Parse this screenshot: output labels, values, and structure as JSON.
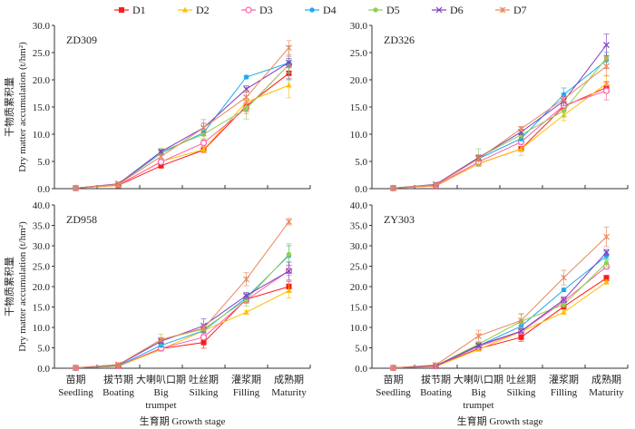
{
  "chart_data": {
    "type": "line",
    "legend": {
      "placement": "top",
      "entries": [
        "D1",
        "D2",
        "D3",
        "D4",
        "D5",
        "D6",
        "D7"
      ]
    },
    "series_styles": [
      {
        "name": "D1",
        "color": "#ff1a1a",
        "marker": "square"
      },
      {
        "name": "D2",
        "color": "#ffc000",
        "marker": "triangle"
      },
      {
        "name": "D3",
        "color": "#ff5fa8",
        "marker": "diamond-open"
      },
      {
        "name": "D4",
        "color": "#1fa8f0",
        "marker": "circle"
      },
      {
        "name": "D5",
        "color": "#8fd14f",
        "marker": "circle"
      },
      {
        "name": "D6",
        "color": "#7d3fbf",
        "marker": "x"
      },
      {
        "name": "D7",
        "color": "#e8865a",
        "marker": "asterisk"
      }
    ],
    "categories_cn": [
      "苗期",
      "拔节期",
      "大喇叭口期",
      "吐丝期",
      "灌浆期",
      "成熟期"
    ],
    "categories_en": [
      "Seedling",
      "Boating",
      "Big trumpet",
      "Silking",
      "Filling",
      "Maturity"
    ],
    "xlabel": "生育期 Growth stage",
    "ylabel_cn": "干物质累积量",
    "ylabel_en": "Dry matter accumulation (t/hm²)",
    "panels": [
      {
        "title": "ZD309",
        "ylim": [
          0,
          30
        ],
        "yticks": [
          "0.0",
          "5.0",
          "10.0",
          "15.0",
          "20.0",
          "25.0",
          "30.0"
        ],
        "series": [
          {
            "name": "D1",
            "values": [
              0.1,
              0.6,
              4.2,
              7.1,
              15.2,
              21.2
            ],
            "errors": [
              0.1,
              0.1,
              0.3,
              0.4,
              1.0,
              1.0
            ]
          },
          {
            "name": "D2",
            "values": [
              0.1,
              0.6,
              5.0,
              7.2,
              15.9,
              19.0
            ],
            "errors": [
              0.1,
              0.1,
              0.4,
              0.5,
              1.2,
              2.3
            ]
          },
          {
            "name": "D3",
            "values": [
              0.1,
              0.7,
              4.9,
              8.4,
              14.8,
              22.8
            ],
            "errors": [
              0.1,
              0.1,
              0.3,
              0.6,
              1.0,
              1.5
            ]
          },
          {
            "name": "D4",
            "values": [
              0.1,
              0.8,
              6.5,
              10.3,
              20.5,
              23.1
            ],
            "errors": [
              0.1,
              0.1,
              0.4,
              0.6,
              0.3,
              3.1
            ]
          },
          {
            "name": "D5",
            "values": [
              0.1,
              0.8,
              6.8,
              10.0,
              14.7,
              22.8
            ],
            "errors": [
              0.1,
              0.1,
              0.6,
              0.8,
              1.9,
              1.5
            ]
          },
          {
            "name": "D6",
            "values": [
              0.1,
              0.9,
              6.8,
              11.2,
              18.3,
              23.2
            ],
            "errors": [
              0.1,
              0.1,
              0.4,
              0.8,
              0.6,
              0.7
            ]
          },
          {
            "name": "D7",
            "values": [
              0.1,
              0.8,
              5.9,
              11.2,
              16.8,
              25.9
            ],
            "errors": [
              0.1,
              0.1,
              0.5,
              1.5,
              1.2,
              1.3
            ]
          }
        ]
      },
      {
        "title": "ZD326",
        "ylim": [
          0,
          30
        ],
        "yticks": [
          "0.0",
          "5.0",
          "10.0",
          "15.0",
          "20.0",
          "25.0",
          "30.0"
        ],
        "series": [
          {
            "name": "D1",
            "values": [
              0.1,
              0.5,
              4.6,
              7.3,
              15.1,
              18.6
            ],
            "errors": [
              0.1,
              0.1,
              0.3,
              0.4,
              0.8,
              1.0
            ]
          },
          {
            "name": "D2",
            "values": [
              0.1,
              0.5,
              4.6,
              7.3,
              13.5,
              19.3
            ],
            "errors": [
              0.1,
              0.1,
              0.3,
              1.2,
              1.0,
              1.5
            ]
          },
          {
            "name": "D3",
            "values": [
              0.1,
              0.6,
              4.9,
              8.6,
              15.3,
              18.0
            ],
            "errors": [
              0.1,
              0.1,
              0.3,
              0.5,
              0.8,
              1.7
            ]
          },
          {
            "name": "D4",
            "values": [
              0.1,
              0.7,
              5.5,
              9.2,
              17.3,
              23.6
            ],
            "errors": [
              0.1,
              0.1,
              0.4,
              0.5,
              1.2,
              1.5
            ]
          },
          {
            "name": "D5",
            "values": [
              0.1,
              0.7,
              5.7,
              9.9,
              14.3,
              24.0
            ],
            "errors": [
              0.1,
              0.1,
              1.6,
              0.6,
              1.0,
              0.6
            ]
          },
          {
            "name": "D6",
            "values": [
              0.1,
              0.8,
              5.7,
              10.4,
              16.1,
              26.4
            ],
            "errors": [
              0.1,
              0.1,
              0.5,
              0.5,
              0.8,
              2.0
            ]
          },
          {
            "name": "D7",
            "values": [
              0.1,
              0.7,
              5.5,
              11.0,
              16.5,
              22.5
            ],
            "errors": [
              0.1,
              0.1,
              0.5,
              0.4,
              0.6,
              1.8
            ]
          }
        ]
      },
      {
        "title": "ZD958",
        "ylim": [
          0,
          40
        ],
        "yticks": [
          "0.0",
          "5.0",
          "10.0",
          "15.0",
          "20.0",
          "25.0",
          "30.0",
          "35.0",
          "40.0"
        ],
        "series": [
          {
            "name": "D1",
            "values": [
              0.1,
              0.5,
              4.8,
              6.3,
              16.9,
              20.0
            ],
            "errors": [
              0.1,
              0.1,
              0.3,
              1.4,
              0.8,
              1.3
            ]
          },
          {
            "name": "D2",
            "values": [
              0.1,
              0.5,
              4.6,
              9.2,
              13.7,
              19.0
            ],
            "errors": [
              0.1,
              0.1,
              0.3,
              0.5,
              0.4,
              1.8
            ]
          },
          {
            "name": "D3",
            "values": [
              0.1,
              0.6,
              4.9,
              7.6,
              16.7,
              23.9
            ],
            "errors": [
              0.1,
              0.1,
              0.3,
              0.6,
              0.8,
              1.2
            ]
          },
          {
            "name": "D4",
            "values": [
              0.1,
              0.6,
              5.6,
              9.2,
              17.3,
              27.6
            ],
            "errors": [
              0.1,
              0.1,
              0.4,
              0.6,
              0.8,
              2.4
            ]
          },
          {
            "name": "D5",
            "values": [
              0.1,
              0.7,
              7.0,
              9.6,
              16.8,
              27.9
            ],
            "errors": [
              0.1,
              0.1,
              1.3,
              0.8,
              1.6,
              2.6
            ]
          },
          {
            "name": "D6",
            "values": [
              0.1,
              0.8,
              6.6,
              10.4,
              17.8,
              23.8
            ],
            "errors": [
              0.1,
              0.1,
              0.5,
              1.7,
              0.8,
              2.2
            ]
          },
          {
            "name": "D7",
            "values": [
              0.1,
              0.9,
              7.0,
              9.8,
              21.8,
              35.9
            ],
            "errors": [
              0.1,
              0.1,
              0.4,
              0.7,
              1.6,
              0.8
            ]
          }
        ]
      },
      {
        "title": "ZY303",
        "ylim": [
          0,
          40
        ],
        "yticks": [
          "0.0",
          "5.0",
          "10.0",
          "15.0",
          "20.0",
          "25.0",
          "30.0",
          "35.0",
          "40.0"
        ],
        "series": [
          {
            "name": "D1",
            "values": [
              0.1,
              0.5,
              4.8,
              7.6,
              15.1,
              22.1
            ],
            "errors": [
              0.1,
              0.1,
              0.3,
              1.0,
              0.6,
              0.7
            ]
          },
          {
            "name": "D2",
            "values": [
              0.1,
              0.4,
              4.6,
              9.0,
              13.7,
              21.1
            ],
            "errors": [
              0.1,
              0.1,
              0.3,
              0.6,
              0.5,
              0.5
            ]
          },
          {
            "name": "D3",
            "values": [
              0.1,
              0.5,
              5.3,
              9.0,
              16.4,
              24.9
            ],
            "errors": [
              0.1,
              0.1,
              0.4,
              0.5,
              0.7,
              0.6
            ]
          },
          {
            "name": "D4",
            "values": [
              0.1,
              0.6,
              5.5,
              10.3,
              19.2,
              27.5
            ],
            "errors": [
              0.1,
              0.1,
              0.4,
              0.6,
              0.4,
              0.9
            ]
          },
          {
            "name": "D5",
            "values": [
              0.1,
              0.6,
              5.9,
              11.5,
              15.6,
              25.8
            ],
            "errors": [
              0.1,
              0.1,
              0.5,
              1.7,
              0.7,
              1.0
            ]
          },
          {
            "name": "D6",
            "values": [
              0.1,
              0.6,
              5.6,
              9.1,
              16.8,
              28.4
            ],
            "errors": [
              0.1,
              0.1,
              0.4,
              0.5,
              0.7,
              0.7
            ]
          },
          {
            "name": "D7",
            "values": [
              0.1,
              0.8,
              7.9,
              11.7,
              22.2,
              32.2
            ],
            "errors": [
              0.1,
              0.1,
              1.4,
              1.7,
              1.8,
              2.4
            ]
          }
        ]
      }
    ]
  }
}
